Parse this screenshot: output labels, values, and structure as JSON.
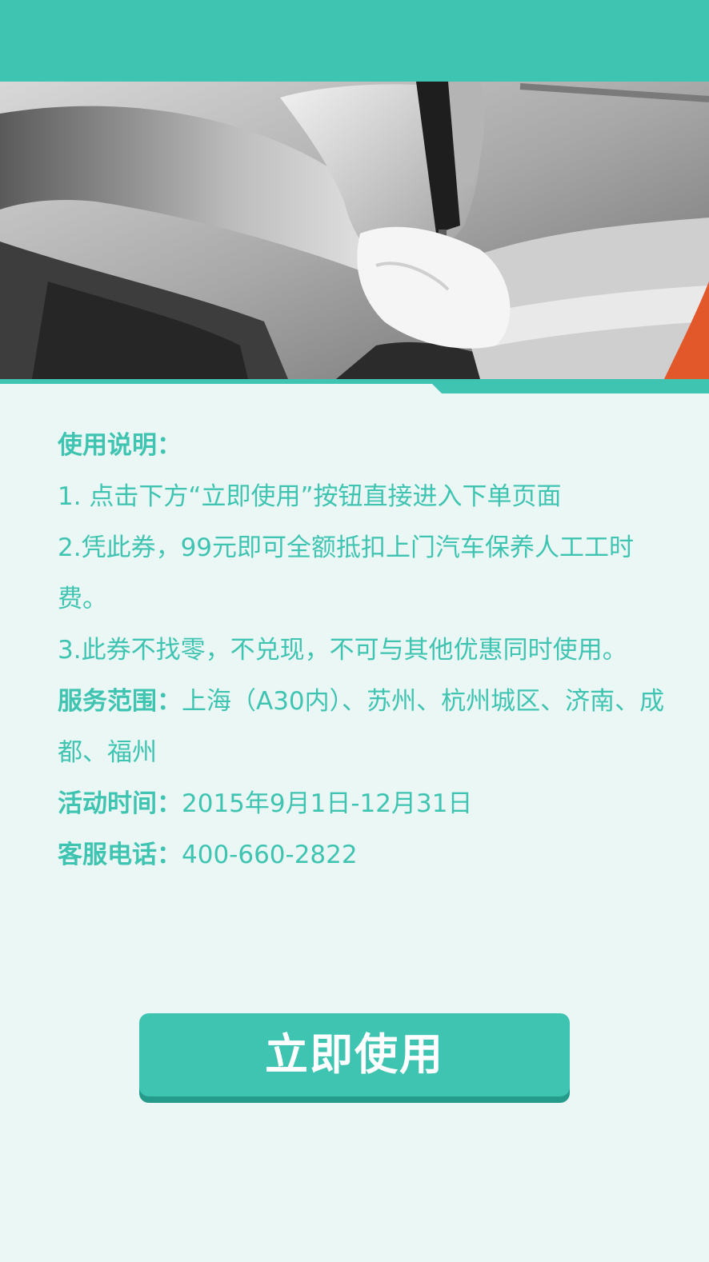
{
  "colors": {
    "accent": "#40c4b2",
    "background": "#eaf7f5",
    "button_shadow": "#249b8b"
  },
  "hero": {
    "icon": "mechanic-screwdriver-photo"
  },
  "instructions": {
    "heading": "使用说明：",
    "items": [
      "1. 点击下方“立即使用”按钮直接进入下单页面",
      "2.凭此券，99元即可全额抵扣上门汽车保养人工工时费。",
      "3.此券不找零，不兑现，不可与其他优惠同时使用。"
    ]
  },
  "service_area": {
    "label": "服务范围：",
    "value": "上海（A30内）、苏州、杭州城区、济南、成都、福州"
  },
  "activity_time": {
    "label": "活动时间：",
    "value": "2015年9月1日-12月31日"
  },
  "customer_service": {
    "label": "客服电话：",
    "value": "400-660-2822"
  },
  "cta": {
    "label": "立即使用"
  }
}
